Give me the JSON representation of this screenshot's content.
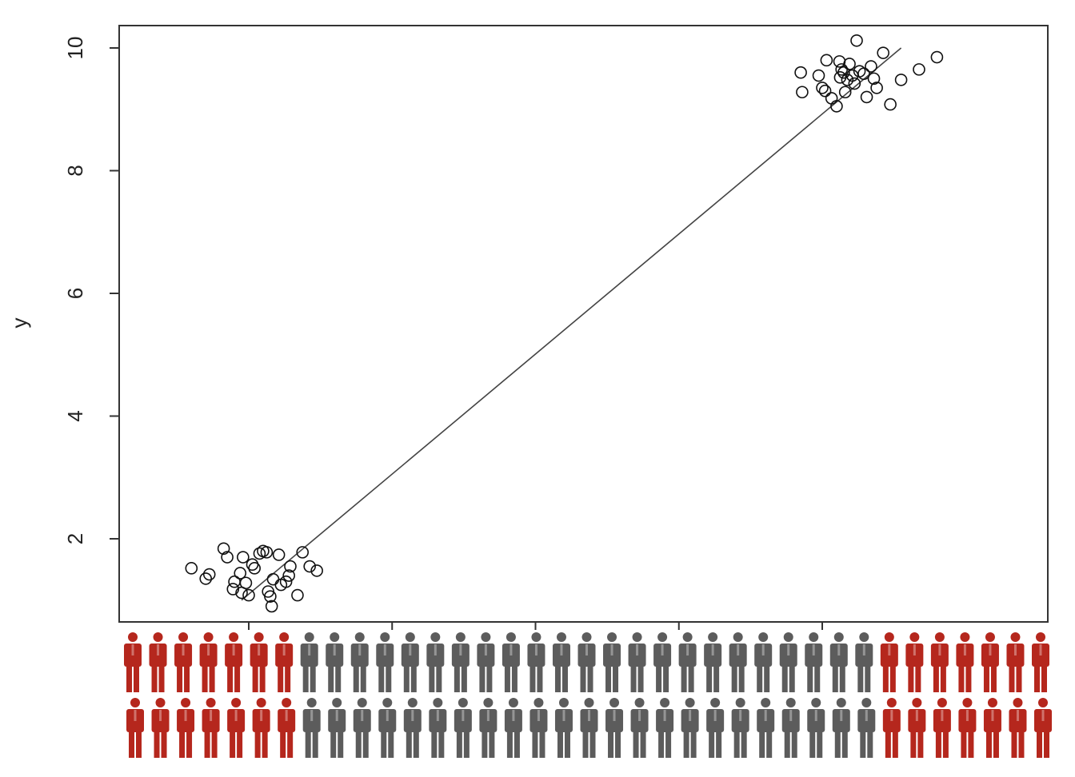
{
  "chart_data": {
    "type": "scatter",
    "title": "",
    "xlabel": "",
    "ylabel": "y",
    "ylim": [
      0.75,
      10.35
    ],
    "y_ticks": [
      "2",
      "4",
      "6",
      "8",
      "10"
    ],
    "x_tick_count": 5,
    "grid": false,
    "marker": "open-circle",
    "fit_line": {
      "x": [
        0.9,
        10.1
      ],
      "y": [
        1.0,
        10.0
      ]
    },
    "points": [
      {
        "x": 0.2,
        "y": 1.52
      },
      {
        "x": 0.4,
        "y": 1.35
      },
      {
        "x": 0.45,
        "y": 1.42
      },
      {
        "x": 0.65,
        "y": 1.84
      },
      {
        "x": 0.7,
        "y": 1.7
      },
      {
        "x": 0.78,
        "y": 1.18
      },
      {
        "x": 0.8,
        "y": 1.3
      },
      {
        "x": 0.88,
        "y": 1.44
      },
      {
        "x": 0.9,
        "y": 1.12
      },
      {
        "x": 0.92,
        "y": 1.7
      },
      {
        "x": 0.96,
        "y": 1.28
      },
      {
        "x": 1.0,
        "y": 1.08
      },
      {
        "x": 1.05,
        "y": 1.58
      },
      {
        "x": 1.08,
        "y": 1.52
      },
      {
        "x": 1.15,
        "y": 1.76
      },
      {
        "x": 1.2,
        "y": 1.8
      },
      {
        "x": 1.25,
        "y": 1.78
      },
      {
        "x": 1.27,
        "y": 1.14
      },
      {
        "x": 1.3,
        "y": 1.06
      },
      {
        "x": 1.32,
        "y": 0.9
      },
      {
        "x": 1.34,
        "y": 1.34
      },
      {
        "x": 1.42,
        "y": 1.74
      },
      {
        "x": 1.45,
        "y": 1.25
      },
      {
        "x": 1.52,
        "y": 1.3
      },
      {
        "x": 1.56,
        "y": 1.4
      },
      {
        "x": 1.58,
        "y": 1.55
      },
      {
        "x": 1.68,
        "y": 1.08
      },
      {
        "x": 1.75,
        "y": 1.78
      },
      {
        "x": 1.85,
        "y": 1.55
      },
      {
        "x": 1.95,
        "y": 1.48
      },
      {
        "x": 8.7,
        "y": 9.6
      },
      {
        "x": 8.72,
        "y": 9.28
      },
      {
        "x": 8.95,
        "y": 9.55
      },
      {
        "x": 9.0,
        "y": 9.35
      },
      {
        "x": 9.04,
        "y": 9.3
      },
      {
        "x": 9.06,
        "y": 9.8
      },
      {
        "x": 9.13,
        "y": 9.18
      },
      {
        "x": 9.2,
        "y": 9.05
      },
      {
        "x": 9.24,
        "y": 9.78
      },
      {
        "x": 9.25,
        "y": 9.52
      },
      {
        "x": 9.27,
        "y": 9.65
      },
      {
        "x": 9.3,
        "y": 9.6
      },
      {
        "x": 9.32,
        "y": 9.28
      },
      {
        "x": 9.35,
        "y": 9.48
      },
      {
        "x": 9.38,
        "y": 9.74
      },
      {
        "x": 9.42,
        "y": 9.55
      },
      {
        "x": 9.45,
        "y": 9.42
      },
      {
        "x": 9.48,
        "y": 10.12
      },
      {
        "x": 9.52,
        "y": 9.62
      },
      {
        "x": 9.58,
        "y": 9.58
      },
      {
        "x": 9.62,
        "y": 9.2
      },
      {
        "x": 9.68,
        "y": 9.7
      },
      {
        "x": 9.72,
        "y": 9.5
      },
      {
        "x": 9.76,
        "y": 9.35
      },
      {
        "x": 9.85,
        "y": 9.92
      },
      {
        "x": 9.95,
        "y": 9.08
      },
      {
        "x": 10.1,
        "y": 9.48
      },
      {
        "x": 10.35,
        "y": 9.65
      },
      {
        "x": 10.6,
        "y": 9.85
      }
    ]
  },
  "pictogram": {
    "rows": [
      [
        "red",
        "red",
        "red",
        "red",
        "red",
        "red",
        "red",
        "gray",
        "gray",
        "gray",
        "gray",
        "gray",
        "gray",
        "gray",
        "gray",
        "gray",
        "gray",
        "gray",
        "gray",
        "gray",
        "gray",
        "gray",
        "gray",
        "gray",
        "gray",
        "gray",
        "gray",
        "gray",
        "gray",
        "gray",
        "red",
        "red",
        "red",
        "red",
        "red",
        "red",
        "red"
      ],
      [
        "red",
        "red",
        "red",
        "red",
        "red",
        "red",
        "red",
        "gray",
        "gray",
        "gray",
        "gray",
        "gray",
        "gray",
        "gray",
        "gray",
        "gray",
        "gray",
        "gray",
        "gray",
        "gray",
        "gray",
        "gray",
        "gray",
        "gray",
        "gray",
        "gray",
        "gray",
        "gray",
        "gray",
        "gray",
        "red",
        "red",
        "red",
        "red",
        "red",
        "red",
        "red"
      ]
    ],
    "colors": {
      "red": "#b5271d",
      "gray": "#5c5c5c"
    },
    "icon": "person-icon"
  }
}
